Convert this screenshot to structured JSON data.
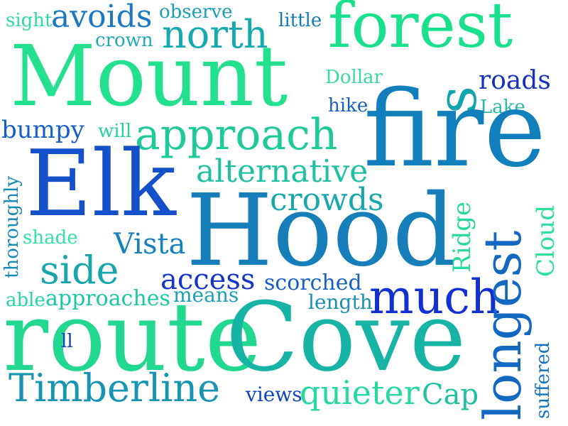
{
  "words": [
    {
      "text": "sight",
      "color": "#2fd9a2"
    },
    {
      "text": "avoids",
      "color": "#1b78c2"
    },
    {
      "text": "observe",
      "color": "#1a9fb6"
    },
    {
      "text": "little",
      "color": "#127bb9"
    },
    {
      "text": "forest",
      "color": "#19e08c"
    },
    {
      "text": "crown",
      "color": "#1fa9b3"
    },
    {
      "text": "north",
      "color": "#14a9ad"
    },
    {
      "text": "Mount",
      "color": "#22e08e"
    },
    {
      "text": "Dollar",
      "color": "#39d8a4"
    },
    {
      "text": "roads",
      "color": "#1730c0"
    },
    {
      "text": "s",
      "color": "#11a4ad"
    },
    {
      "text": "hike",
      "color": "#1a5fc2"
    },
    {
      "text": "Lake",
      "color": "#28b9a6"
    },
    {
      "text": "fire",
      "color": "#127fbd"
    },
    {
      "text": "bumpy",
      "color": "#1560c4"
    },
    {
      "text": "will",
      "color": "#24d19a"
    },
    {
      "text": "approach",
      "color": "#1ec99a"
    },
    {
      "text": "Elk",
      "color": "#1450c9"
    },
    {
      "text": "alternative",
      "color": "#1fbfa2"
    },
    {
      "text": "crowds",
      "color": "#18a7ad"
    },
    {
      "text": "Hood",
      "color": "#167eb8"
    },
    {
      "text": "thoroughly",
      "color": "#158ab5"
    },
    {
      "text": "shade",
      "color": "#2fe2a0"
    },
    {
      "text": "Vista",
      "color": "#1480bf"
    },
    {
      "text": "Ridge",
      "color": "#28d79a"
    },
    {
      "text": "Cloud",
      "color": "#2fe09d"
    },
    {
      "text": "side",
      "color": "#17a6ab"
    },
    {
      "text": "access",
      "color": "#1536c8"
    },
    {
      "text": "scorched",
      "color": "#1561c3"
    },
    {
      "text": "able",
      "color": "#25d7a0"
    },
    {
      "text": "approaches",
      "color": "#1bc7a4"
    },
    {
      "text": "means",
      "color": "#1c9fb6"
    },
    {
      "text": "much",
      "color": "#1230cf"
    },
    {
      "text": "length",
      "color": "#1c8db4"
    },
    {
      "text": "longest",
      "color": "#1368c1"
    },
    {
      "text": "route",
      "color": "#22d790"
    },
    {
      "text": "Cove",
      "color": "#17b4a6"
    },
    {
      "text": "ll",
      "color": "#1240c2"
    },
    {
      "text": "suffered",
      "color": "#1472bf"
    },
    {
      "text": "Timberline",
      "color": "#1894b3"
    },
    {
      "text": "views",
      "color": "#1344c4"
    },
    {
      "text": "quieter",
      "color": "#27d9a0"
    },
    {
      "text": "Cap",
      "color": "#1ec1a2"
    }
  ]
}
